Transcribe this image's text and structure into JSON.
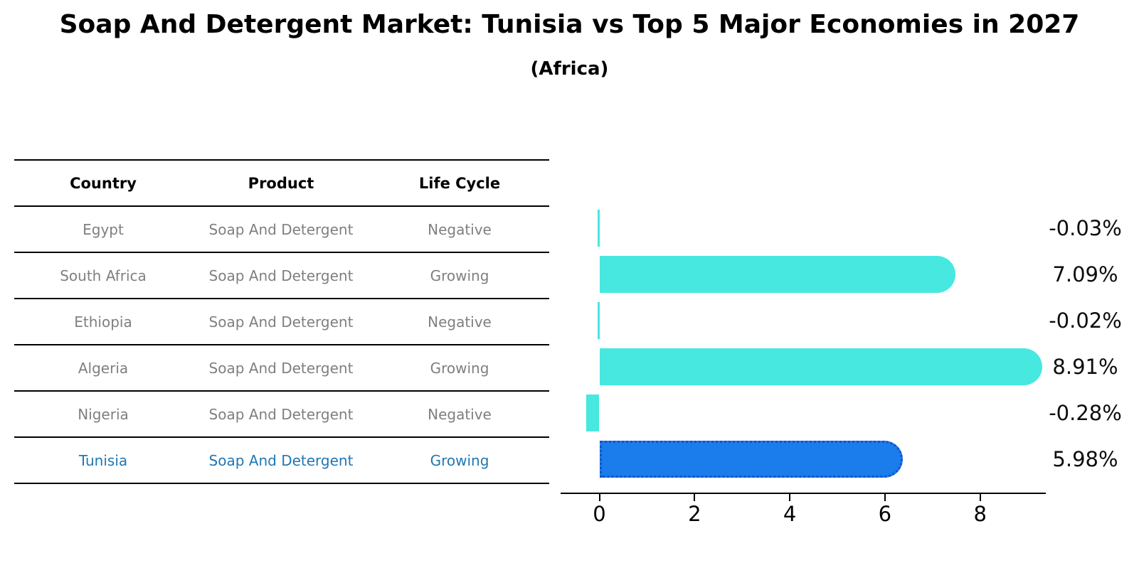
{
  "title": "Soap And Detergent Market: Tunisia vs Top 5 Major Economies in 2027",
  "subtitle": "(Africa)",
  "table": {
    "headers": [
      "Country",
      "Product",
      "Life Cycle"
    ],
    "rows": [
      {
        "country": "Egypt",
        "product": "Soap And Detergent",
        "life_cycle": "Negative",
        "highlight": false
      },
      {
        "country": "South Africa",
        "product": "Soap And Detergent",
        "life_cycle": "Growing",
        "highlight": false
      },
      {
        "country": "Ethiopia",
        "product": "Soap And Detergent",
        "life_cycle": "Negative",
        "highlight": false
      },
      {
        "country": "Algeria",
        "product": "Soap And Detergent",
        "life_cycle": "Growing",
        "highlight": false
      },
      {
        "country": "Nigeria",
        "product": "Soap And Detergent",
        "life_cycle": "Negative",
        "highlight": false
      },
      {
        "country": "Tunisia",
        "product": "Soap And Detergent",
        "life_cycle": "Growing",
        "highlight": true
      }
    ]
  },
  "chart_data": {
    "type": "bar",
    "orientation": "horizontal",
    "title": "Soap And Detergent Market: Tunisia vs Top 5 Major Economies in 2027",
    "subtitle": "(Africa)",
    "categories": [
      "Egypt",
      "South Africa",
      "Ethiopia",
      "Algeria",
      "Nigeria",
      "Tunisia"
    ],
    "values": [
      -0.03,
      7.09,
      -0.02,
      8.91,
      -0.28,
      5.98
    ],
    "value_labels": [
      "-0.03%",
      "7.09%",
      "-0.02%",
      "8.91%",
      "-0.28%",
      "5.98%"
    ],
    "highlight_category": "Tunisia",
    "x_ticks": [
      0,
      2,
      4,
      6,
      8
    ],
    "xlim": [
      -0.81,
      9.39
    ],
    "xlabel": "",
    "ylabel": "",
    "grid": false,
    "legend": "none"
  },
  "colors": {
    "bar_default": "#46e8e0",
    "bar_highlight": "#1b7cec",
    "bar_highlight_border": "#1552c8",
    "row_text": "#7f7f7f",
    "highlight_text": "#1f77b4",
    "axis": "#000000",
    "title_text": "#000000"
  }
}
